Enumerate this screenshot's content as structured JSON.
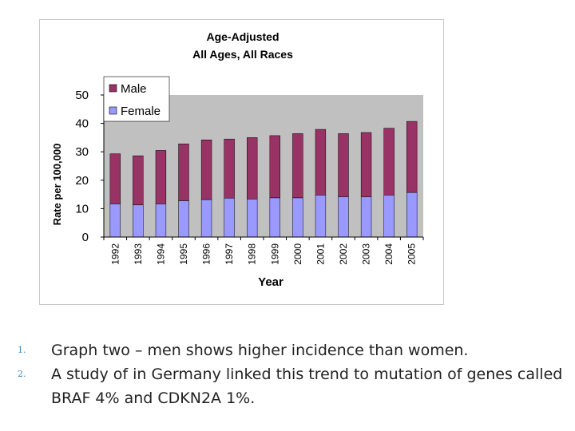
{
  "chart_data": {
    "type": "bar",
    "stacked": true,
    "title_lines": [
      "Age-Adjusted",
      "All Ages, All Races"
    ],
    "xlabel": "Year",
    "ylabel": "Rate per 100,000",
    "ylim": [
      0,
      50
    ],
    "yticks": [
      0,
      10,
      20,
      30,
      40,
      50
    ],
    "grid": false,
    "plot_background": "#c0c0c0",
    "legend_position": "top-left",
    "categories": [
      "1992",
      "1993",
      "1994",
      "1995",
      "1996",
      "1997",
      "1998",
      "1999",
      "2000",
      "2001",
      "2002",
      "2003",
      "2004",
      "2005"
    ],
    "series": [
      {
        "name": "Female",
        "color": "#9999ff",
        "values": [
          11.7,
          11.3,
          11.7,
          12.8,
          13.2,
          13.7,
          13.4,
          13.8,
          13.8,
          14.8,
          14.2,
          14.2,
          14.8,
          15.7
        ]
      },
      {
        "name": "Male",
        "color": "#993366",
        "values": [
          17.6,
          17.3,
          18.8,
          20.0,
          21.0,
          20.8,
          21.6,
          21.9,
          22.6,
          23.1,
          22.2,
          22.6,
          23.5,
          25.0
        ]
      }
    ]
  },
  "notes": [
    {
      "number": "1.",
      "text": "Graph two – men shows higher incidence than women."
    },
    {
      "number": "2.",
      "text": "A study of in Germany linked this trend to mutation of genes called BRAF 4% and CDKN2A 1%."
    }
  ]
}
